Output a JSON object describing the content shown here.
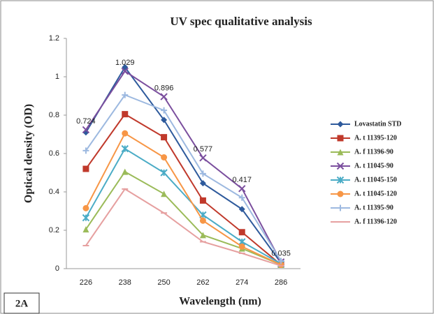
{
  "chart_data": {
    "type": "line",
    "title": "UV spec qualitative analysis",
    "x_label": "Wavelength (nm)",
    "y_label": "Optical density (OD)",
    "panel_label": "2A",
    "categories": [
      "226",
      "238",
      "250",
      "262",
      "274",
      "286"
    ],
    "ylim": [
      0,
      1.2
    ],
    "yticks": [
      0,
      0.2,
      0.4,
      0.6,
      0.8,
      1,
      1.2
    ],
    "grid": false,
    "legend": "right",
    "series": [
      {
        "name": "Lovastatin STD",
        "color": "#2e5a9c",
        "marker": "diamond",
        "values": [
          0.71,
          1.05,
          0.775,
          0.445,
          0.31,
          0.03
        ]
      },
      {
        "name": "A. t 11395-120",
        "color": "#c0392b",
        "marker": "square",
        "values": [
          0.52,
          0.805,
          0.685,
          0.355,
          0.19,
          0.02
        ]
      },
      {
        "name": "A. f 11396-90",
        "color": "#9bbb59",
        "marker": "triangle",
        "values": [
          0.205,
          0.505,
          0.39,
          0.175,
          0.105,
          0.02
        ]
      },
      {
        "name": "A. t 11045-90",
        "color": "#7b4f9e",
        "marker": "x",
        "show_values": true,
        "values": [
          0.724,
          1.029,
          0.896,
          0.577,
          0.417,
          0.035
        ]
      },
      {
        "name": "A. t 11045-150",
        "color": "#4bacc6",
        "marker": "star",
        "values": [
          0.265,
          0.625,
          0.5,
          0.28,
          0.14,
          0.025
        ]
      },
      {
        "name": "A. t 11045-120",
        "color": "#f79646",
        "marker": "circle",
        "values": [
          0.315,
          0.705,
          0.58,
          0.25,
          0.115,
          0.02
        ]
      },
      {
        "name": "A. t 11395-90",
        "color": "#9db9e0",
        "marker": "plus",
        "values": [
          0.615,
          0.905,
          0.825,
          0.495,
          0.37,
          0.04
        ]
      },
      {
        "name": "A. f 11396-120",
        "color": "#e6a0a0",
        "marker": "dash",
        "values": [
          0.12,
          0.415,
          0.29,
          0.14,
          0.08,
          0.015
        ]
      }
    ]
  }
}
